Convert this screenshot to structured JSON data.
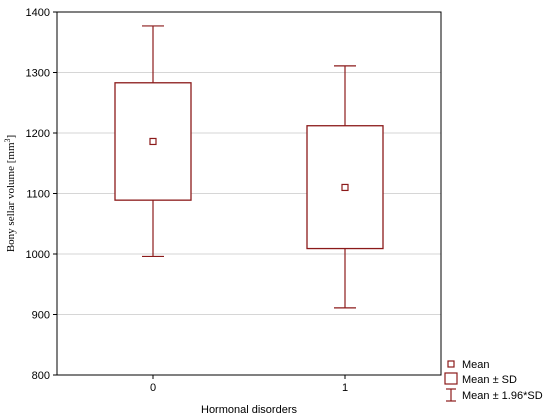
{
  "chart_data": {
    "type": "boxplot",
    "xlabel": "Hormonal disorders",
    "ylabel": "Bony sellar volume [mm",
    "ylabel_superscript": "3",
    "ylabel_suffix": "]",
    "categories": [
      "0",
      "1"
    ],
    "series": [
      {
        "category": "0",
        "mean": 1186,
        "mean_minus_sd": 1089,
        "mean_plus_sd": 1283,
        "mean_minus_1_96sd": 996,
        "mean_plus_1_96sd": 1377
      },
      {
        "category": "1",
        "mean": 1110,
        "mean_minus_sd": 1009,
        "mean_plus_sd": 1212,
        "mean_minus_1_96sd": 911,
        "mean_plus_1_96sd": 1311
      }
    ],
    "ylim": [
      800,
      1400
    ],
    "yticks": [
      "800",
      "900",
      "1000",
      "1100",
      "1200",
      "1300",
      "1400"
    ],
    "grid": true,
    "legend": {
      "placement": "bottom-right",
      "entries": [
        "Mean",
        "Mean ± SD",
        "Mean ± 1.96*SD"
      ]
    },
    "color": "#8b1a1a"
  }
}
